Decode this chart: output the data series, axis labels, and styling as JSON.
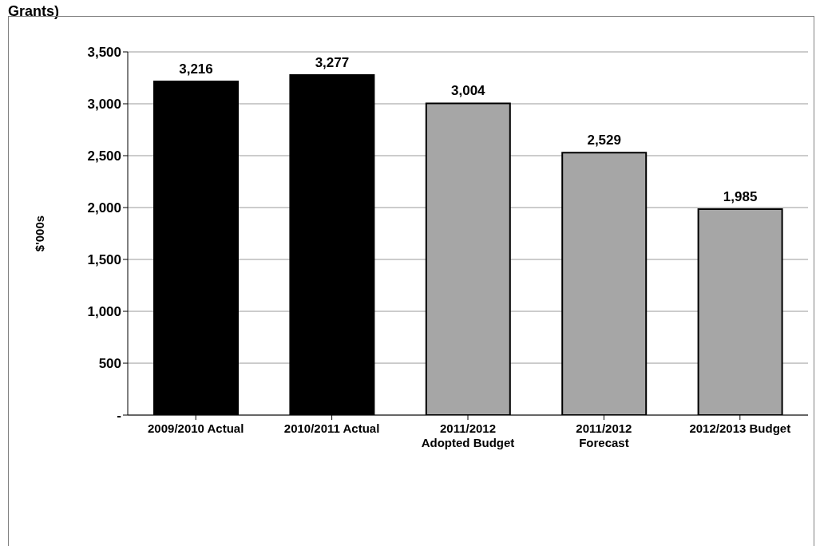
{
  "chart_data": {
    "type": "bar",
    "title": "Grants)",
    "ylabel": "$'000s",
    "categories": [
      "2009/2010 Actual",
      "2010/2011 Actual",
      "2011/2012\nAdopted Budget",
      "2011/2012\nForecast",
      "2012/2013 Budget"
    ],
    "values": [
      3216,
      3277,
      3004,
      2529,
      1985
    ],
    "colors": [
      "#000000",
      "#000000",
      "#a6a6a6",
      "#a6a6a6",
      "#a6a6a6"
    ],
    "ylim": [
      0,
      3500
    ],
    "yticks": [
      {
        "value": 0,
        "label": "-"
      },
      {
        "value": 500,
        "label": "500"
      },
      {
        "value": 1000,
        "label": "1,000"
      },
      {
        "value": 1500,
        "label": "1,500"
      },
      {
        "value": 2000,
        "label": "2,000"
      },
      {
        "value": 2500,
        "label": "2,500"
      },
      {
        "value": 3000,
        "label": "3,000"
      },
      {
        "value": 3500,
        "label": "3,500"
      }
    ],
    "grid": "y",
    "value_labels": [
      "3,216",
      "3,277",
      "3,004",
      "2,529",
      "1,985"
    ]
  }
}
